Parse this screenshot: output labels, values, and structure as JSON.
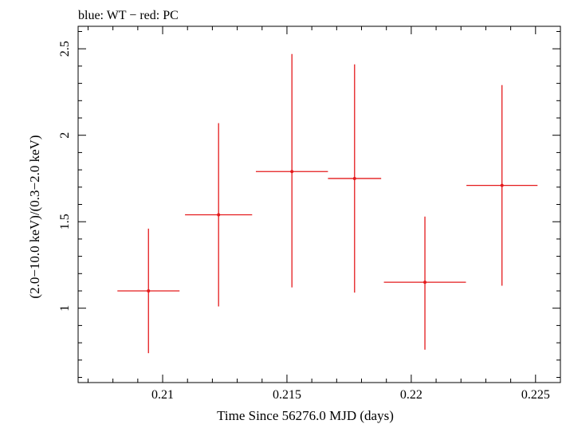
{
  "chart_data": {
    "type": "scatter",
    "title": "blue: WT − red: PC",
    "xlabel": "Time Since 56276.0 MJD (days)",
    "ylabel": "(2.0−10.0 keV)/(0.3−2.0 keV)",
    "xlim": [
      0.2066,
      0.226
    ],
    "ylim": [
      0.57,
      2.63
    ],
    "x_ticks": [
      0.21,
      0.215,
      0.22,
      0.225
    ],
    "x_tick_labels": [
      "0.21",
      "0.215",
      "0.22",
      "0.225"
    ],
    "y_ticks": [
      1,
      1.5,
      2,
      2.5
    ],
    "y_tick_labels": [
      "1",
      "1.5",
      "2",
      "2.5"
    ],
    "grid": false,
    "series": [
      {
        "color": "#e41a1c",
        "points": [
          {
            "x": 0.20943,
            "y": 1.1,
            "xerr": 0.00125,
            "ylo": 0.74,
            "yhi": 1.46
          },
          {
            "x": 0.21225,
            "y": 1.54,
            "xerr": 0.00135,
            "ylo": 1.01,
            "yhi": 2.07
          },
          {
            "x": 0.2152,
            "y": 1.79,
            "xerr": 0.00145,
            "ylo": 1.12,
            "yhi": 2.47
          },
          {
            "x": 0.21772,
            "y": 1.75,
            "xerr": 0.00107,
            "ylo": 1.09,
            "yhi": 2.41
          },
          {
            "x": 0.22055,
            "y": 1.15,
            "xerr": 0.00165,
            "ylo": 0.76,
            "yhi": 1.53
          },
          {
            "x": 0.22365,
            "y": 1.71,
            "xerr": 0.00143,
            "ylo": 1.13,
            "yhi": 2.29
          }
        ]
      }
    ]
  }
}
